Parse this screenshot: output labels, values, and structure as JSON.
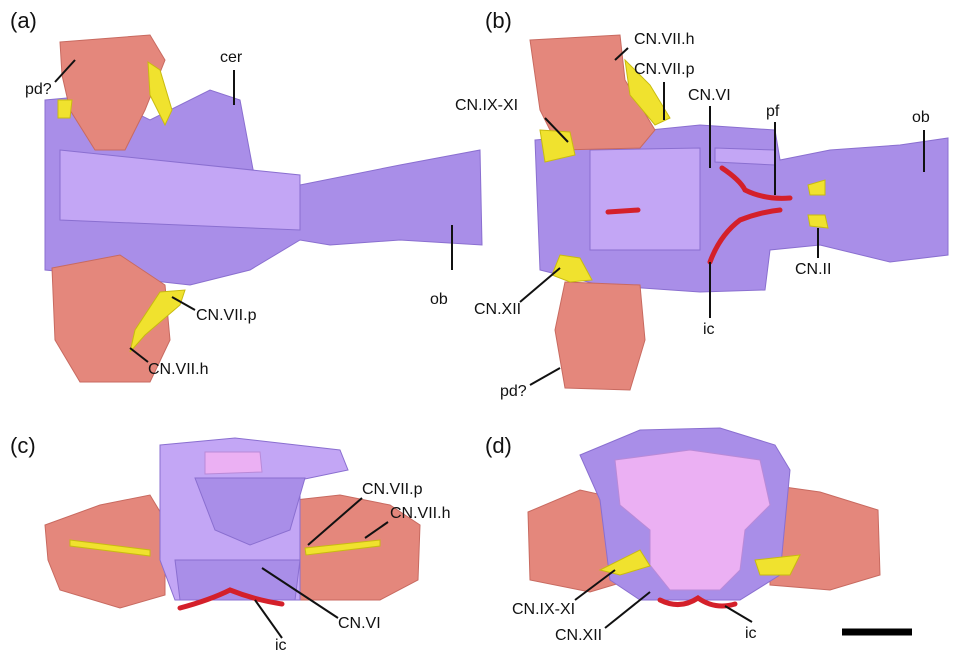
{
  "panels": [
    {
      "tag": "(a)",
      "labels": [
        "pd?",
        "cer",
        "ob",
        "CN.VII.p",
        "CN.VII.h"
      ]
    },
    {
      "tag": "(b)",
      "labels": [
        "CN.VII.h",
        "CN.VII.p",
        "CN.IX-XI",
        "CN.VI",
        "pf",
        "ob",
        "CN.II",
        "CN.XII",
        "ic",
        "pd?"
      ]
    },
    {
      "tag": "(c)",
      "labels": [
        "CN.VII.p",
        "CN.VII.h",
        "CN.VI",
        "ic"
      ]
    },
    {
      "tag": "(d)",
      "labels": [
        "CN.IX-XI",
        "CN.XII",
        "ic"
      ]
    }
  ]
}
